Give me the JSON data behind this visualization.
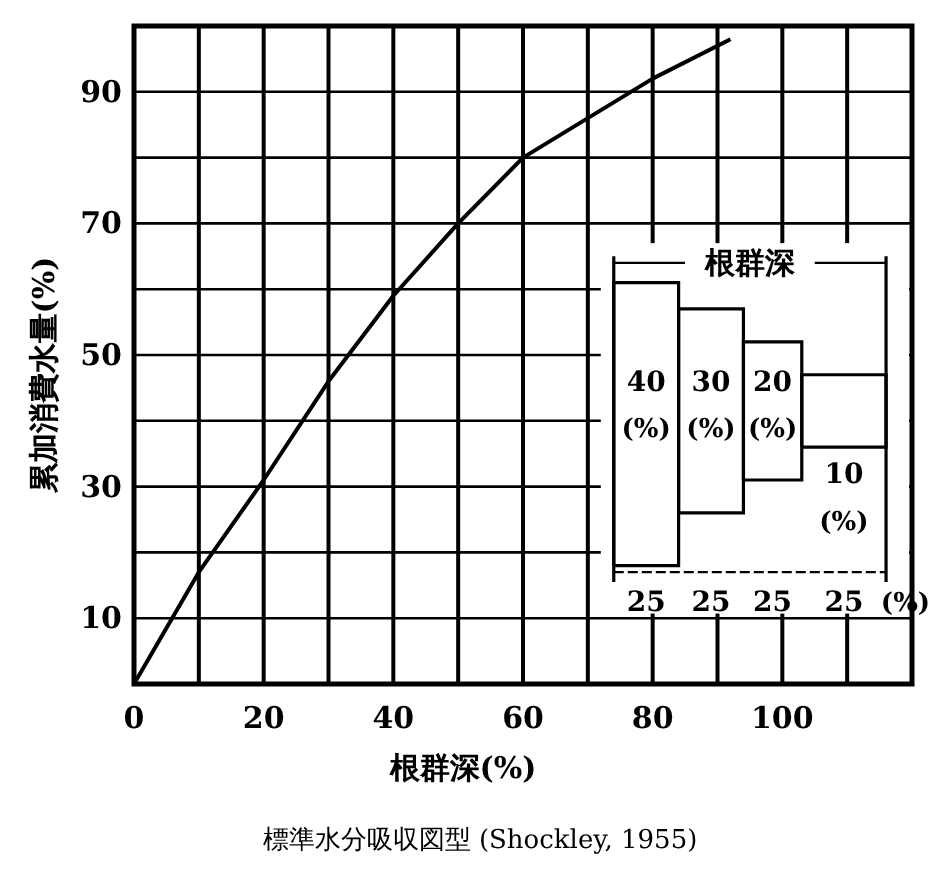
{
  "chart_data": {
    "type": "line",
    "xlabel": "根群深(%)",
    "ylabel": "累加消費水量(%)",
    "x": [
      0,
      10,
      20,
      30,
      40,
      50,
      60,
      70,
      80,
      92
    ],
    "series": [
      {
        "color": "#000000",
        "values": [
          0,
          17,
          31,
          46,
          59,
          70,
          80,
          86,
          92,
          98
        ]
      }
    ],
    "xlim": [
      0,
      120
    ],
    "ylim": [
      0,
      100
    ],
    "xticks": [
      0,
      {
        "value": 10,
        "label": null
      },
      20,
      {
        "value": 30,
        "label": null
      },
      40,
      {
        "value": 50,
        "label": null
      },
      60,
      {
        "value": 70,
        "label": null
      },
      80,
      {
        "value": 90,
        "label": null
      },
      100,
      {
        "value": 110,
        "label": null
      }
    ],
    "yticks": [
      {
        "value": 0,
        "label": null
      },
      10,
      {
        "value": 20,
        "label": null
      },
      30,
      {
        "value": 40,
        "label": null
      },
      50,
      {
        "value": 60,
        "label": null
      },
      70,
      {
        "value": 80,
        "label": null
      },
      90
    ],
    "grid": true,
    "marker": "none",
    "line_style": "solid",
    "annotations": [
      "根群深",
      "40",
      "(%)",
      "30",
      "(%)",
      "20",
      "(%)",
      "10",
      "(%)",
      "25",
      "25",
      "25",
      "25",
      "(%)",
      "標準水分吸収図型 (Shockley, 1955)"
    ]
  }
}
